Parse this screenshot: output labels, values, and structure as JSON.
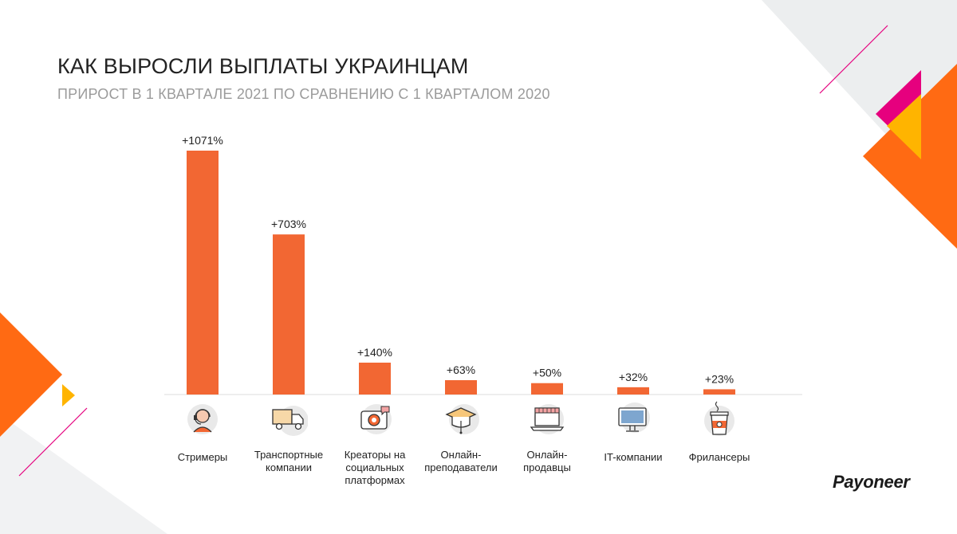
{
  "header": {
    "title": "КАК ВЫРОСЛИ ВЫПЛАТЫ УКРАИНЦАМ",
    "subtitle": "ПРИРОСТ В 1 КВАРТАЛЕ 2021 ПО СРАВНЕНИЮ С 1 КВАРТАЛОМ 2020"
  },
  "brand": {
    "logo_text": "Payoneer"
  },
  "colors": {
    "bar": "#f26733",
    "deco_gray": "#eceeef",
    "deco_orange": "#ff6a13",
    "deco_yellow": "#ffb400",
    "deco_magenta": "#e6007e"
  },
  "chart_data": {
    "type": "bar",
    "title": "КАК ВЫРОСЛИ ВЫПЛАТЫ УКРАИНЦАМ",
    "subtitle": "ПРИРОСТ В 1 КВАРТАЛЕ 2021 ПО СРАВНЕНИЮ С 1 КВАРТАЛОМ 2020",
    "categories": [
      "Стримеры",
      "Транспортные компании",
      "Креаторы на социальных платформах",
      "Онлайн-преподаватели",
      "Онлайн-продавцы",
      "IT-компании",
      "Фрилансеры"
    ],
    "category_label_lines": [
      [
        "Стримеры"
      ],
      [
        "Транспортные",
        "компании"
      ],
      [
        "Креаторы на",
        "социальных",
        "платформах"
      ],
      [
        "Онлайн-",
        "преподаватели"
      ],
      [
        "Онлайн-",
        "продавцы"
      ],
      [
        "IT-компании"
      ],
      [
        "Фрилансеры"
      ]
    ],
    "values": [
      1071,
      703,
      140,
      63,
      50,
      32,
      23
    ],
    "value_labels": [
      "+1071%",
      "+703%",
      "+140%",
      "+63%",
      "+50%",
      "+32%",
      "+23%"
    ],
    "icons": [
      "headset-icon",
      "truck-icon",
      "camera-icon",
      "graduation-cap-icon",
      "shop-laptop-icon",
      "monitor-icon",
      "coffee-cup-icon"
    ],
    "ylim": [
      0,
      1071
    ],
    "xlabel": "",
    "ylabel": "",
    "grid": false,
    "legend": "none"
  }
}
